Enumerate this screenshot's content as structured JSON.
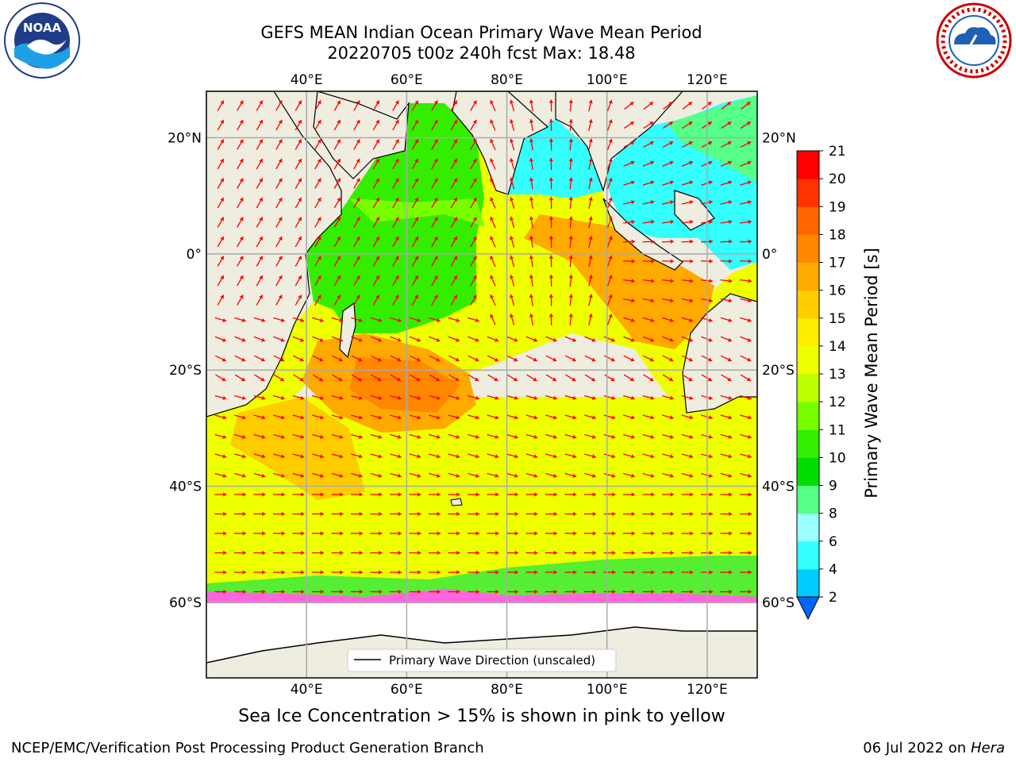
{
  "header": {
    "title_line1": "GEFS MEAN Indian Ocean Primary Wave Mean Period",
    "title_line2": "20220705 t00z 240h fcst   Max: 18.48"
  },
  "logos": {
    "left": {
      "text": "NOAA",
      "icon": "noaa-logo"
    },
    "right": {
      "icon": "nws-logo"
    }
  },
  "map": {
    "lon_ticks": [
      "40°E",
      "60°E",
      "80°E",
      "100°E",
      "120°E"
    ],
    "lat_ticks": [
      "20°N",
      "0°",
      "20°S",
      "40°S",
      "60°S"
    ],
    "lon_range": [
      20,
      130
    ],
    "lat_range": [
      -73,
      28
    ],
    "legend_label": "Primary Wave Direction (unscaled)",
    "vector_color": "#ff0000",
    "land_color": "#efeddf"
  },
  "colorbar": {
    "label": "Primary Wave Mean Period [s]",
    "ticks": [
      "2",
      "4",
      "6",
      "8",
      "9",
      "10",
      "11",
      "12",
      "13",
      "14",
      "15",
      "16",
      "17",
      "18",
      "19",
      "20",
      "21"
    ],
    "colors": [
      "#0066ff",
      "#00ccff",
      "#33ffff",
      "#99ffff",
      "#55ff88",
      "#00dd00",
      "#33ee00",
      "#77ff00",
      "#bbff00",
      "#eeff00",
      "#ffee00",
      "#ffcc00",
      "#ffaa00",
      "#ff8800",
      "#ff6600",
      "#ff3300",
      "#ff0000"
    ]
  },
  "caption": "Sea Ice Concentration > 15% is shown in pink to yellow",
  "footer": {
    "left": "NCEP/EMC/Verification Post Processing Product Generation Branch",
    "right_date": "06 Jul 2022 on ",
    "right_host": "Hera"
  }
}
